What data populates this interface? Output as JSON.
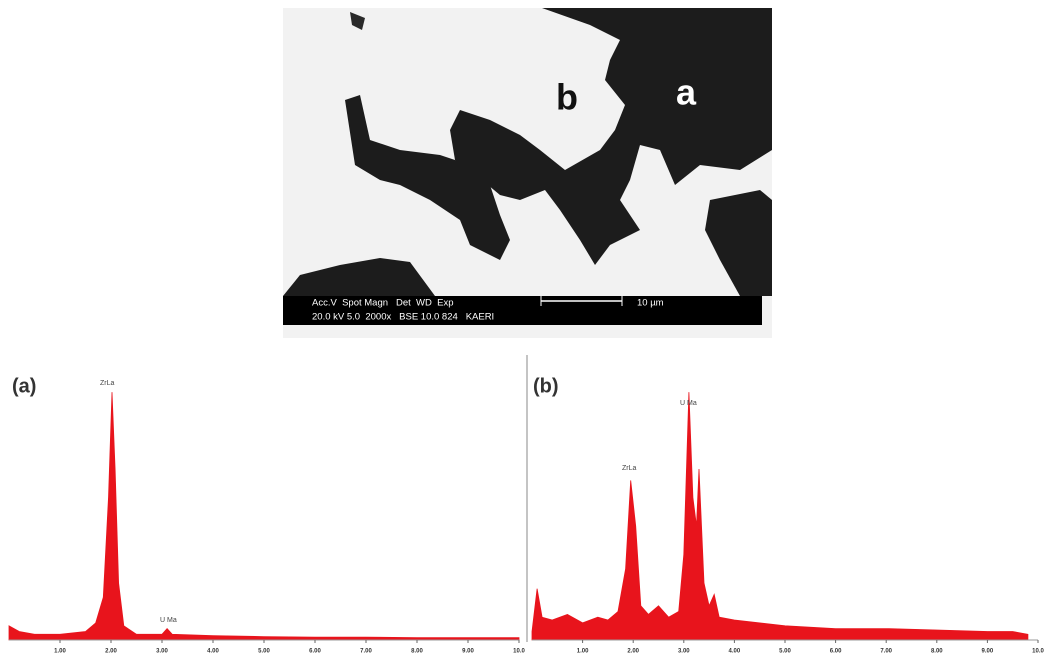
{
  "image": {
    "labels": [
      "a",
      "b"
    ],
    "info_header": "Acc.V  Spot Magn   Det  WD  Exp",
    "info_values": "20.0 kV 5.0  2000x   BSE 10.0 824   KAERI",
    "scale": "10 µm"
  },
  "chart_data": [
    {
      "type": "area",
      "title": "(a)",
      "color": "#e8141c",
      "annotations": [
        "ZrLa",
        "U Ma"
      ],
      "x": [
        0,
        0.2,
        0.5,
        1.0,
        1.5,
        1.7,
        1.85,
        1.95,
        2.02,
        2.08,
        2.15,
        2.25,
        2.5,
        3.0,
        3.1,
        3.2,
        4,
        5,
        6,
        7,
        8,
        9,
        10
      ],
      "values": [
        5,
        3,
        2,
        2,
        3,
        6,
        15,
        50,
        87,
        60,
        20,
        5,
        2,
        2,
        4,
        2,
        1.5,
        1.2,
        1,
        1,
        0.8,
        0.8,
        0.8
      ],
      "xlim": [
        0,
        10
      ],
      "ylim": [
        0,
        100
      ],
      "xticks": [
        {
          "value": 1,
          "label": "1.00"
        },
        {
          "value": 2,
          "label": "2.00"
        },
        {
          "value": 3,
          "label": "3.00"
        },
        {
          "value": 4,
          "label": "4.00"
        },
        {
          "value": 5,
          "label": "5.00"
        },
        {
          "value": 6,
          "label": "6.00"
        },
        {
          "value": 7,
          "label": "7.00"
        },
        {
          "value": 8,
          "label": "8.00"
        },
        {
          "value": 9,
          "label": "9.00"
        },
        {
          "value": 10,
          "label": "10.0"
        }
      ]
    },
    {
      "type": "area",
      "title": "(b)",
      "color": "#e8141c",
      "annotations": [
        "ZrLa",
        "U Ma"
      ],
      "x": [
        0,
        0.1,
        0.2,
        0.4,
        0.7,
        1.0,
        1.3,
        1.5,
        1.7,
        1.85,
        1.95,
        2.05,
        2.15,
        2.3,
        2.5,
        2.7,
        2.9,
        3.0,
        3.1,
        3.18,
        3.25,
        3.3,
        3.4,
        3.5,
        3.6,
        3.7,
        4.0,
        4.5,
        5,
        6,
        7,
        8,
        9,
        9.5,
        9.8
      ],
      "values": [
        3,
        18,
        8,
        7,
        9,
        6,
        8,
        7,
        10,
        25,
        56,
        40,
        12,
        9,
        12,
        8,
        10,
        30,
        87,
        50,
        40,
        60,
        20,
        12,
        16,
        8,
        7,
        6,
        5,
        4,
        4,
        3.5,
        3,
        3,
        2
      ],
      "xlim": [
        0,
        10
      ],
      "ylim": [
        0,
        100
      ],
      "xticks": [
        {
          "value": 1,
          "label": "1.00"
        },
        {
          "value": 2,
          "label": "2.00"
        },
        {
          "value": 3,
          "label": "3.00"
        },
        {
          "value": 4,
          "label": "4.00"
        },
        {
          "value": 5,
          "label": "5.00"
        },
        {
          "value": 6,
          "label": "6.00"
        },
        {
          "value": 7,
          "label": "7.00"
        },
        {
          "value": 8,
          "label": "8.00"
        },
        {
          "value": 9,
          "label": "9.00"
        },
        {
          "value": 10,
          "label": "10.0"
        }
      ]
    }
  ]
}
